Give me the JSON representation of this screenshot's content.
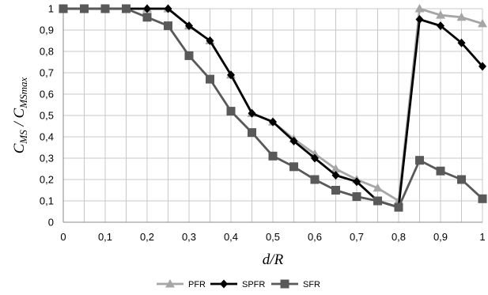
{
  "chart_data": {
    "type": "line",
    "xlabel": "d/R",
    "ylabel": "C_MS / C_MSmax",
    "xlim": [
      0,
      1
    ],
    "ylim": [
      0,
      1
    ],
    "x_ticks": [
      "0",
      "0,05",
      "0,1",
      "0,15",
      "0,2",
      "0,25",
      "0,3",
      "0,35",
      "0,4",
      "0,45",
      "0,5",
      "0,55",
      "0,6",
      "0,65",
      "0,7",
      "0,75",
      "0,8",
      "0,85",
      "0,9",
      "0,95",
      "1"
    ],
    "x_tick_labels_shown": [
      "0",
      "0,1",
      "0,2",
      "0,3",
      "0,4",
      "0,5",
      "0,6",
      "0,7",
      "0,8",
      "0,9",
      "1"
    ],
    "y_tick_labels": [
      "0",
      "0,1",
      "0,2",
      "0,3",
      "0,4",
      "0,5",
      "0,6",
      "0,7",
      "0,8",
      "0,9",
      "1"
    ],
    "grid": true,
    "legend_position": "bottom",
    "x": [
      0,
      0.05,
      0.1,
      0.15,
      0.2,
      0.25,
      0.3,
      0.35,
      0.4,
      0.45,
      0.5,
      0.55,
      0.6,
      0.65,
      0.7,
      0.75,
      0.8,
      0.85,
      0.9,
      0.95,
      1
    ],
    "series": [
      {
        "name": "PFR",
        "color": "#a6a6a6",
        "marker": "triangle",
        "values": [
          1,
          1,
          1,
          1,
          1,
          1,
          0.92,
          0.85,
          0.69,
          0.51,
          0.47,
          0.39,
          0.32,
          0.25,
          0.2,
          0.16,
          0.1,
          1.0,
          0.97,
          0.96,
          0.93
        ]
      },
      {
        "name": "SPFR",
        "color": "#000000",
        "marker": "diamond",
        "values": [
          1,
          1,
          1,
          1,
          1,
          1,
          0.92,
          0.85,
          0.69,
          0.51,
          0.47,
          0.38,
          0.3,
          0.22,
          0.19,
          0.1,
          0.07,
          0.95,
          0.92,
          0.84,
          0.73
        ]
      },
      {
        "name": "SFR",
        "color": "#595959",
        "marker": "square",
        "values": [
          1,
          1,
          1,
          1,
          0.96,
          0.92,
          0.78,
          0.67,
          0.52,
          0.42,
          0.31,
          0.26,
          0.2,
          0.15,
          0.12,
          0.1,
          0.07,
          0.29,
          0.24,
          0.2,
          0.11
        ]
      }
    ]
  }
}
